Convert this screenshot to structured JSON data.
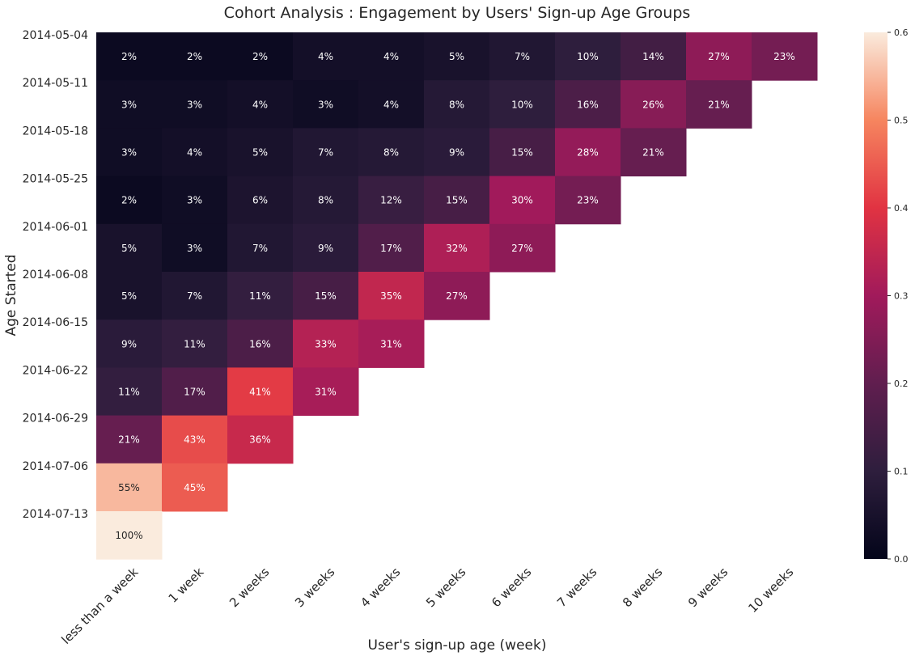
{
  "chart_data": {
    "type": "heatmap",
    "title": "Cohort Analysis : Engagement by Users' Sign-up Age Groups",
    "xlabel": "User's sign-up age (week)",
    "ylabel": "Age Started",
    "x_categories": [
      "less than a week",
      "1 week",
      "2 weeks",
      "3 weeks",
      "4 weeks",
      "5 weeks",
      "6 weeks",
      "7 weeks",
      "8 weeks",
      "9 weeks",
      "10 weeks"
    ],
    "y_categories": [
      "2014-05-04",
      "2014-05-11",
      "2014-05-18",
      "2014-05-25",
      "2014-06-01",
      "2014-06-08",
      "2014-06-15",
      "2014-06-22",
      "2014-06-29",
      "2014-07-06",
      "2014-07-13"
    ],
    "values": [
      [
        0.02,
        0.02,
        0.02,
        0.04,
        0.04,
        0.05,
        0.07,
        0.1,
        0.14,
        0.27,
        0.23
      ],
      [
        0.03,
        0.03,
        0.04,
        0.03,
        0.04,
        0.08,
        0.1,
        0.16,
        0.26,
        0.21,
        null
      ],
      [
        0.03,
        0.04,
        0.05,
        0.07,
        0.08,
        0.09,
        0.15,
        0.28,
        0.21,
        null,
        null
      ],
      [
        0.02,
        0.03,
        0.06,
        0.08,
        0.12,
        0.15,
        0.3,
        0.23,
        null,
        null,
        null
      ],
      [
        0.05,
        0.03,
        0.07,
        0.09,
        0.17,
        0.32,
        0.27,
        null,
        null,
        null,
        null
      ],
      [
        0.05,
        0.07,
        0.11,
        0.15,
        0.35,
        0.27,
        null,
        null,
        null,
        null,
        null
      ],
      [
        0.09,
        0.11,
        0.16,
        0.33,
        0.31,
        null,
        null,
        null,
        null,
        null,
        null
      ],
      [
        0.11,
        0.17,
        0.41,
        0.31,
        null,
        null,
        null,
        null,
        null,
        null,
        null
      ],
      [
        0.21,
        0.43,
        0.36,
        null,
        null,
        null,
        null,
        null,
        null,
        null,
        null
      ],
      [
        0.55,
        0.45,
        null,
        null,
        null,
        null,
        null,
        null,
        null,
        null,
        null
      ],
      [
        1.0,
        null,
        null,
        null,
        null,
        null,
        null,
        null,
        null,
        null,
        null
      ]
    ],
    "labels": [
      [
        "2%",
        "2%",
        "2%",
        "4%",
        "4%",
        "5%",
        "7%",
        "10%",
        "14%",
        "27%",
        "23%"
      ],
      [
        "3%",
        "3%",
        "4%",
        "3%",
        "4%",
        "8%",
        "10%",
        "16%",
        "26%",
        "21%",
        null
      ],
      [
        "3%",
        "4%",
        "5%",
        "7%",
        "8%",
        "9%",
        "15%",
        "28%",
        "21%",
        null,
        null
      ],
      [
        "2%",
        "3%",
        "6%",
        "8%",
        "12%",
        "15%",
        "30%",
        "23%",
        null,
        null,
        null
      ],
      [
        "5%",
        "3%",
        "7%",
        "9%",
        "17%",
        "32%",
        "27%",
        null,
        null,
        null,
        null
      ],
      [
        "5%",
        "7%",
        "11%",
        "15%",
        "35%",
        "27%",
        null,
        null,
        null,
        null,
        null
      ],
      [
        "9%",
        "11%",
        "16%",
        "33%",
        "31%",
        null,
        null,
        null,
        null,
        null,
        null
      ],
      [
        "11%",
        "17%",
        "41%",
        "31%",
        null,
        null,
        null,
        null,
        null,
        null,
        null
      ],
      [
        "21%",
        "43%",
        "36%",
        null,
        null,
        null,
        null,
        null,
        null,
        null,
        null
      ],
      [
        "55%",
        "45%",
        null,
        null,
        null,
        null,
        null,
        null,
        null,
        null,
        null
      ],
      [
        "100%",
        null,
        null,
        null,
        null,
        null,
        null,
        null,
        null,
        null,
        null
      ]
    ],
    "color_scale": {
      "name": "rocket",
      "vmin": 0.0,
      "vmax": 0.6,
      "ticks": [
        "0.0",
        "0.1",
        "0.2",
        "0.3",
        "0.4",
        "0.5",
        "0.6"
      ],
      "stops": [
        "#03051a",
        "#2e1e3d",
        "#601e4f",
        "#a11a5b",
        "#e13342",
        "#f6855f",
        "#faebdd"
      ]
    },
    "light_text_color": "#ffffff",
    "dark_text_color": "#262626"
  }
}
